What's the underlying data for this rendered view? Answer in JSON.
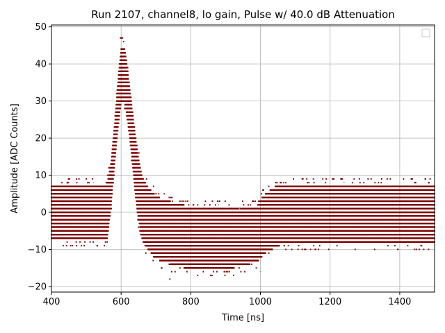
{
  "chart_data": {
    "type": "scatter",
    "title": "Run 2107, channel8, lo gain, Pulse w/ 40.0 dB Attenuation",
    "xlabel": "Time [ns]",
    "ylabel": "Amplitude [ADC Counts]",
    "xlim": [
      400,
      1500
    ],
    "ylim": [
      -21.5,
      50.5
    ],
    "xticks": [
      400,
      600,
      800,
      1000,
      1200,
      1400
    ],
    "yticks": [
      -20,
      -10,
      0,
      10,
      20,
      30,
      40,
      50
    ],
    "grid": true,
    "legend_placement": "top-right",
    "colors": {
      "points": "#7a0000",
      "grid": "#b0b0b0",
      "stray_points": "#5f9ea0"
    },
    "series": [
      {
        "band_shape": {
          "time_ns": [
            400,
            560,
            570,
            580,
            590,
            600,
            610,
            620,
            630,
            640,
            650,
            660,
            680,
            700,
            720,
            760,
            800,
            850,
            900,
            950,
            990,
            1000,
            1020,
            1050,
            1060,
            1100,
            1200,
            1300,
            1400,
            1500
          ],
          "upper": [
            7,
            7,
            12,
            22,
            34,
            44,
            44,
            37,
            29,
            21,
            14,
            9,
            6,
            4,
            3,
            2,
            1,
            1,
            1,
            1,
            1,
            3,
            5,
            7,
            7,
            7,
            7,
            7,
            7,
            7
          ],
          "lower": [
            -7,
            -7,
            1,
            12,
            22,
            30,
            30,
            24,
            16,
            6,
            -2,
            -7,
            -10,
            -12,
            -13,
            -14,
            -15,
            -15,
            -15,
            -14,
            -13,
            -12,
            -10,
            -9,
            -8,
            -8,
            -8,
            -8,
            -8,
            -8
          ],
          "peak_max": 47,
          "min_outlier": -18
        }
      }
    ]
  }
}
